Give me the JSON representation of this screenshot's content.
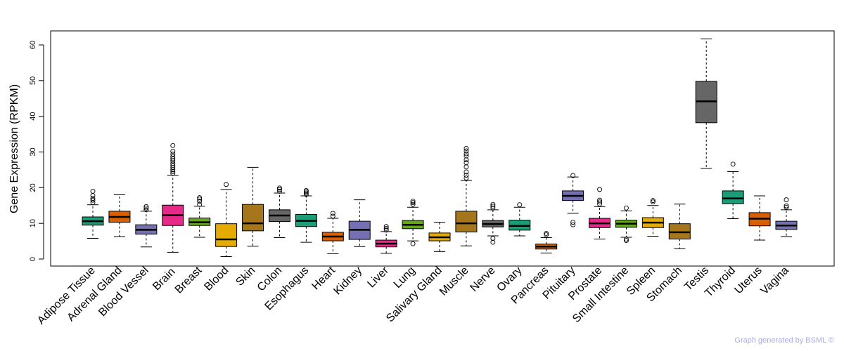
{
  "chart_data": {
    "type": "boxplot",
    "title": "",
    "xlabel": "",
    "ylabel": "Gene Expression (RPKM)",
    "ylim": [
      0,
      62
    ],
    "yticks": [
      0,
      10,
      20,
      30,
      40,
      50,
      60
    ],
    "highlight_category": "Brain",
    "highlight_color": "#ff0000",
    "footer": "Graph generated by BSML ©",
    "footer_color": "#aaaaee",
    "categories": [
      {
        "name": "Adipose Tissue",
        "color": "#1b9e77",
        "whisker_low": 5.8,
        "q1": 9.5,
        "median": 10.6,
        "q3": 11.8,
        "whisker_high": 15.2,
        "outliers": [
          15.8,
          16.5,
          17.0,
          17.8,
          19.0
        ]
      },
      {
        "name": "Adrenal Gland",
        "color": "#d95f02",
        "whisker_low": 6.3,
        "q1": 10.3,
        "median": 11.8,
        "q3": 13.4,
        "whisker_high": 18.0,
        "outliers": []
      },
      {
        "name": "Blood Vessel",
        "color": "#7570b3",
        "whisker_low": 3.4,
        "q1": 7.0,
        "median": 8.2,
        "q3": 9.6,
        "whisker_high": 13.4,
        "outliers": [
          13.8,
          14.3,
          14.7
        ]
      },
      {
        "name": "Brain",
        "color": "#e7298a",
        "whisker_low": 1.9,
        "q1": 9.4,
        "median": 12.3,
        "q3": 15.1,
        "whisker_high": 23.5,
        "outliers": [
          24.0,
          24.5,
          25.0,
          25.6,
          26.2,
          26.8,
          27.5,
          28.1,
          28.7,
          29.4,
          30.2,
          31.8
        ]
      },
      {
        "name": "Breast",
        "color": "#66a61e",
        "whisker_low": 6.1,
        "q1": 9.4,
        "median": 10.3,
        "q3": 11.5,
        "whisker_high": 14.8,
        "outliers": [
          15.3,
          16.2,
          16.8,
          17.2
        ]
      },
      {
        "name": "Blood",
        "color": "#e6ab02",
        "whisker_low": 0.7,
        "q1": 3.5,
        "median": 5.5,
        "q3": 9.9,
        "whisker_high": 19.5,
        "outliers": [
          20.9
        ]
      },
      {
        "name": "Skin",
        "color": "#a6761d",
        "whisker_low": 3.6,
        "q1": 7.9,
        "median": 10.0,
        "q3": 15.3,
        "whisker_high": 25.7,
        "outliers": []
      },
      {
        "name": "Colon",
        "color": "#666666",
        "whisker_low": 6.0,
        "q1": 10.5,
        "median": 12.2,
        "q3": 13.8,
        "whisker_high": 18.5,
        "outliers": [
          19.0,
          19.5,
          19.9
        ]
      },
      {
        "name": "Esophagus",
        "color": "#1b9e77",
        "whisker_low": 4.7,
        "q1": 9.1,
        "median": 10.7,
        "q3": 12.5,
        "whisker_high": 17.7,
        "outliers": [
          18.1,
          18.5,
          18.9,
          19.2
        ]
      },
      {
        "name": "Heart",
        "color": "#d95f02",
        "whisker_low": 1.5,
        "q1": 5.1,
        "median": 6.3,
        "q3": 7.5,
        "whisker_high": 11.4,
        "outliers": [
          12.0,
          12.8
        ]
      },
      {
        "name": "Kidney",
        "color": "#7570b3",
        "whisker_low": 3.5,
        "q1": 5.5,
        "median": 8.2,
        "q3": 10.6,
        "whisker_high": 16.6,
        "outliers": []
      },
      {
        "name": "Liver",
        "color": "#e7298a",
        "whisker_low": 1.6,
        "q1": 3.4,
        "median": 4.3,
        "q3": 5.3,
        "whisker_high": 7.7,
        "outliers": [
          8.1,
          8.6,
          9.1
        ]
      },
      {
        "name": "Lung",
        "color": "#66a61e",
        "whisker_low": 5.1,
        "q1": 8.5,
        "median": 9.6,
        "q3": 10.8,
        "whisker_high": 14.5,
        "outliers": [
          4.3,
          15.3,
          15.8,
          16.2
        ]
      },
      {
        "name": "Salivary Gland",
        "color": "#e6ab02",
        "whisker_low": 2.1,
        "q1": 5.1,
        "median": 6.1,
        "q3": 7.3,
        "whisker_high": 10.3,
        "outliers": []
      },
      {
        "name": "Muscle",
        "color": "#a6761d",
        "whisker_low": 3.7,
        "q1": 7.6,
        "median": 10.0,
        "q3": 13.4,
        "whisker_high": 22.0,
        "outliers": [
          22.7,
          23.5,
          24.4,
          25.8,
          27.0,
          27.8,
          28.9,
          29.5,
          30.3,
          31.0
        ]
      },
      {
        "name": "Nerve",
        "color": "#666666",
        "whisker_low": 6.5,
        "q1": 9.0,
        "median": 9.8,
        "q3": 10.8,
        "whisker_high": 13.8,
        "outliers": [
          4.7,
          5.8,
          14.3,
          14.8,
          15.3
        ]
      },
      {
        "name": "Ovary",
        "color": "#1b9e77",
        "whisker_low": 6.5,
        "q1": 8.1,
        "median": 9.3,
        "q3": 10.9,
        "whisker_high": 14.5,
        "outliers": [
          15.2
        ]
      },
      {
        "name": "Pancreas",
        "color": "#d95f02",
        "whisker_low": 1.7,
        "q1": 2.8,
        "median": 3.5,
        "q3": 4.2,
        "whisker_high": 6.0,
        "outliers": [
          6.8,
          7.2
        ]
      },
      {
        "name": "Pituitary",
        "color": "#7570b3",
        "whisker_low": 12.8,
        "q1": 16.4,
        "median": 17.7,
        "q3": 19.1,
        "whisker_high": 23.0,
        "outliers": [
          9.6,
          10.3,
          23.4
        ]
      },
      {
        "name": "Prostate",
        "color": "#e7298a",
        "whisker_low": 5.6,
        "q1": 8.8,
        "median": 10.0,
        "q3": 11.4,
        "whisker_high": 14.7,
        "outliers": [
          15.4,
          16.0,
          16.5,
          19.5
        ]
      },
      {
        "name": "Small Intestine",
        "color": "#66a61e",
        "whisker_low": 6.1,
        "q1": 8.9,
        "median": 9.9,
        "q3": 10.9,
        "whisker_high": 13.5,
        "outliers": [
          5.2,
          5.6,
          14.3
        ]
      },
      {
        "name": "Spleen",
        "color": "#e6ab02",
        "whisker_low": 6.4,
        "q1": 8.8,
        "median": 10.2,
        "q3": 11.6,
        "whisker_high": 15.0,
        "outliers": [
          16.0,
          16.4
        ]
      },
      {
        "name": "Stomach",
        "color": "#a6761d",
        "whisker_low": 2.9,
        "q1": 5.6,
        "median": 7.5,
        "q3": 9.9,
        "whisker_high": 15.4,
        "outliers": []
      },
      {
        "name": "Testis",
        "color": "#666666",
        "whisker_low": 25.4,
        "q1": 38.2,
        "median": 44.2,
        "q3": 49.8,
        "whisker_high": 61.7,
        "outliers": []
      },
      {
        "name": "Thyroid",
        "color": "#1b9e77",
        "whisker_low": 11.3,
        "q1": 15.5,
        "median": 17.0,
        "q3": 19.1,
        "whisker_high": 24.5,
        "outliers": [
          26.6
        ]
      },
      {
        "name": "Uterus",
        "color": "#d95f02",
        "whisker_low": 5.3,
        "q1": 9.3,
        "median": 11.3,
        "q3": 13.0,
        "whisker_high": 17.7,
        "outliers": []
      },
      {
        "name": "Vagina",
        "color": "#7570b3",
        "whisker_low": 6.3,
        "q1": 8.3,
        "median": 9.4,
        "q3": 10.6,
        "whisker_high": 13.8,
        "outliers": [
          14.5,
          14.9,
          16.6
        ]
      }
    ]
  }
}
